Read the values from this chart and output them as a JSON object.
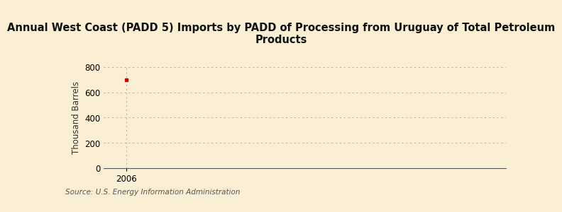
{
  "title": "Annual West Coast (PADD 5) Imports by PADD of Processing from Uruguay of Total Petroleum\nProducts",
  "ylabel": "Thousand Barrels",
  "source": "Source: U.S. Energy Information Administration",
  "background_color": "#faefd4",
  "plot_background_color": "#faefd4",
  "x_data": [
    2006
  ],
  "y_data": [
    700
  ],
  "data_color": "#cc0000",
  "xlim": [
    2005.4,
    2016
  ],
  "ylim": [
    0,
    800
  ],
  "yticks": [
    0,
    200,
    400,
    600,
    800
  ],
  "xticks": [
    2006
  ],
  "grid_color": "#b0a898",
  "title_fontsize": 10.5,
  "axis_fontsize": 8.5,
  "tick_fontsize": 8.5,
  "source_fontsize": 7.5
}
